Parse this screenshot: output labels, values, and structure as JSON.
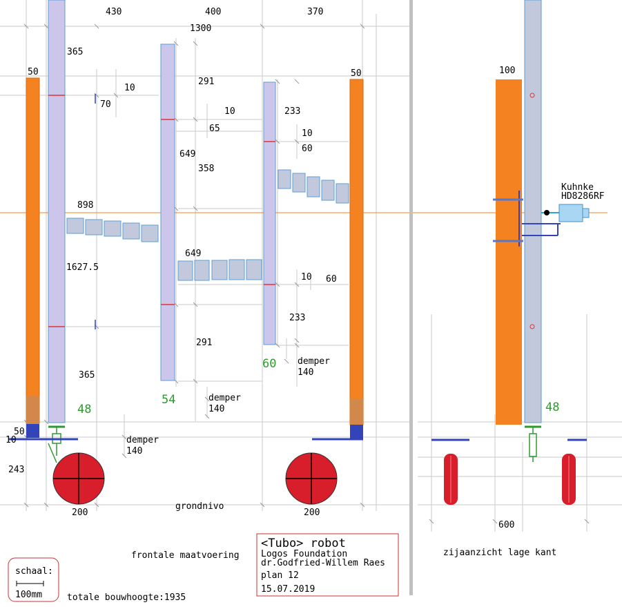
{
  "colors": {
    "orange": "#f58220",
    "lavender": "#cbc6ea",
    "tube_side": "#c2c9dc",
    "tube_border": "#5a9ed6",
    "blue": "#3344bb",
    "wheel": "#d81e2a",
    "green_dim": "#2e9a2e",
    "guide": "#c8c8c8",
    "divider": "#c0c0c0",
    "water": "#a9d6f3"
  },
  "front": {
    "widths": {
      "left": "430",
      "mid": "400",
      "right": "370",
      "total": "1300"
    },
    "left_post": {
      "width": "50",
      "bottom_a": "50",
      "bottom_b": "10",
      "wheel_height": "243",
      "wheel_width": "200"
    },
    "right_post": {
      "width": "50",
      "wheel_width": "200"
    },
    "col1": {
      "above": "365",
      "below": "365",
      "spacing_a": "10",
      "spacing_b": "70",
      "tube_total": "898",
      "height": "1627.5",
      "diameter": "48",
      "damper": "demper",
      "damper_value": "140"
    },
    "col2": {
      "above": "291",
      "below": "291",
      "spacing_a": "10",
      "spacing_b": "65",
      "length": "649",
      "mid": "358",
      "tube_total": "649",
      "diameter": "54",
      "damper": "demper",
      "damper_value": "140"
    },
    "col3": {
      "above": "233",
      "below": "233",
      "spacing_a": "10",
      "spacing_b": "60",
      "spacing_c": "10",
      "spacing_d": "60",
      "diameter": "60",
      "damper": "demper",
      "damper_value": "140"
    },
    "ground": "grondnivo",
    "caption": "frontale maatvoering"
  },
  "side": {
    "post_width": "100",
    "diameter": "48",
    "width": "600",
    "motor_brand": "Kuhnke",
    "motor_model": "HD8286RF",
    "caption": "zijaanzicht lage kant"
  },
  "scale": {
    "label": "schaal:",
    "value": "100mm"
  },
  "total_height": "totale bouwhoogte:1935",
  "title_block": {
    "title": "<Tubo> robot",
    "org": "Logos Foundation",
    "author": "dr.Godfried-Willem Raes",
    "plan": "plan 12",
    "date": "15.07.2019"
  }
}
